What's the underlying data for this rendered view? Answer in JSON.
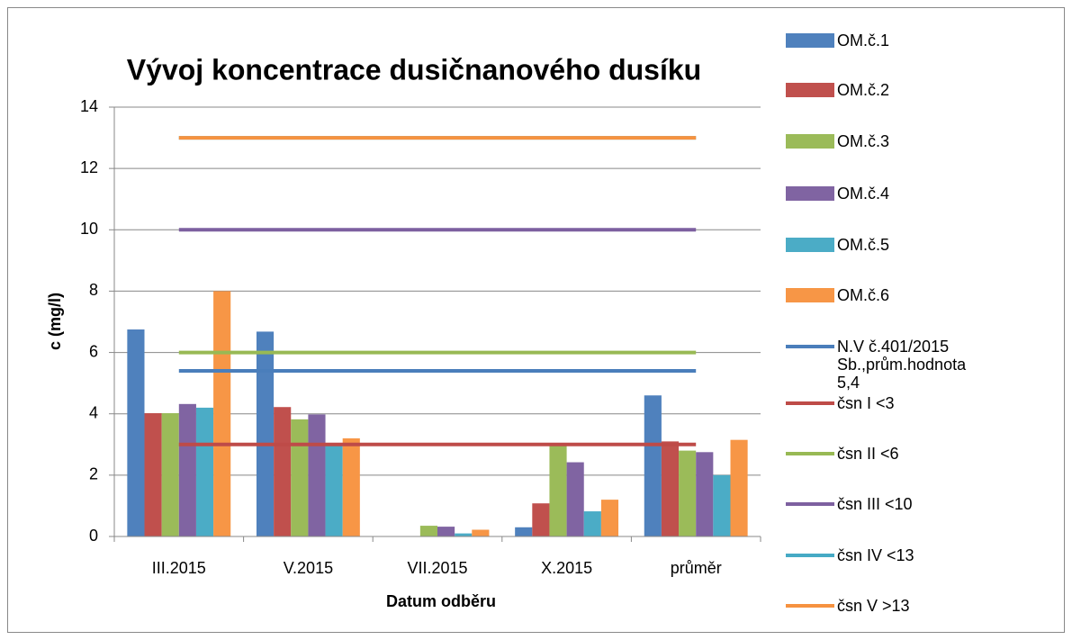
{
  "chart_data": {
    "type": "bar",
    "title": "Vývoj koncentrace dusičnanového dusíku",
    "x_label": "Datum odběru",
    "y_label": "c (mg/l)",
    "categories": [
      "III.2015",
      "V.2015",
      "VII.2015",
      "X.2015",
      "průměr"
    ],
    "ylim": [
      0,
      14
    ],
    "yticks": [
      0,
      2,
      4,
      6,
      8,
      10,
      12,
      14
    ],
    "grid": true,
    "legend": "right",
    "series": [
      {
        "name": "OM.č.1",
        "type": "bar",
        "color": "#4f81bd",
        "values": [
          6.75,
          6.68,
          0,
          0.3,
          4.6
        ]
      },
      {
        "name": "OM.č.2",
        "type": "bar",
        "color": "#c0504d",
        "values": [
          4.02,
          4.22,
          0,
          1.08,
          3.1
        ]
      },
      {
        "name": "OM.č.3",
        "type": "bar",
        "color": "#9bbb59",
        "values": [
          4.02,
          3.82,
          0.35,
          3.0,
          2.8
        ]
      },
      {
        "name": "OM.č.4",
        "type": "bar",
        "color": "#8064a2",
        "values": [
          4.32,
          3.98,
          0.32,
          2.42,
          2.75
        ]
      },
      {
        "name": "OM.č.5",
        "type": "bar",
        "color": "#4bacc6",
        "values": [
          4.2,
          3.0,
          0.1,
          0.82,
          2.0
        ]
      },
      {
        "name": "OM.č.6",
        "type": "bar",
        "color": "#f79646",
        "values": [
          8.0,
          3.2,
          0.22,
          1.2,
          3.15
        ]
      },
      {
        "name": "N.V č.401/2015 Sb.,prům.hodnota 5,4",
        "type": "line",
        "color": "#4a7ebb",
        "values": [
          5.4,
          5.4,
          5.4,
          5.4,
          5.4
        ]
      },
      {
        "name": "čsn I <3",
        "type": "line",
        "color": "#be4b48",
        "values": [
          3,
          3,
          3,
          3,
          3
        ]
      },
      {
        "name": "čsn II <6",
        "type": "line",
        "color": "#98b954",
        "values": [
          6,
          6,
          6,
          6,
          6
        ]
      },
      {
        "name": "čsn III <10",
        "type": "line",
        "color": "#7d60a0",
        "values": [
          10,
          10,
          10,
          10,
          10
        ]
      },
      {
        "name": "čsn IV <13",
        "type": "line",
        "color": "#46aac5",
        "values": [
          13,
          13,
          13,
          13,
          13
        ]
      },
      {
        "name": "čsn V >13",
        "type": "line",
        "color": "#f69240",
        "values": [
          13,
          13,
          13,
          13,
          13
        ]
      }
    ]
  }
}
